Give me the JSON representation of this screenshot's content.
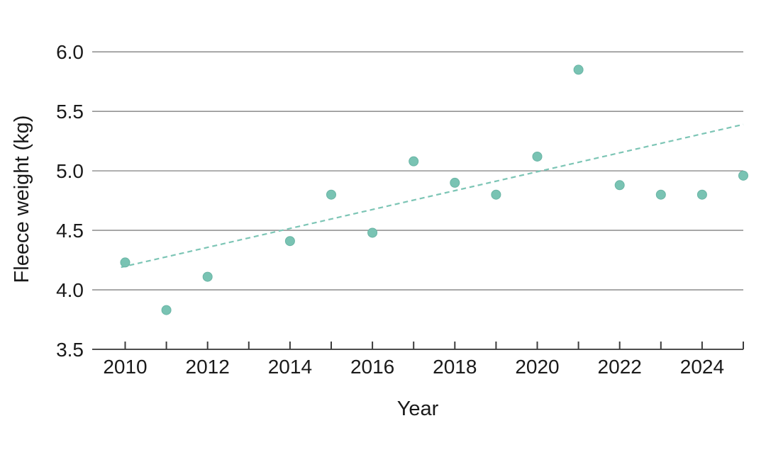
{
  "chart_data": {
    "type": "scatter",
    "title": "",
    "xlabel": "Year",
    "ylabel": "Fleece weight (kg)",
    "x": [
      2010,
      2011,
      2012,
      2014,
      2015,
      2016,
      2017,
      2018,
      2019,
      2020,
      2021,
      2022,
      2023,
      2024,
      2025
    ],
    "y": [
      4.23,
      3.83,
      4.11,
      4.41,
      4.8,
      4.48,
      5.08,
      4.9,
      4.8,
      5.12,
      5.85,
      4.88,
      4.8,
      4.8,
      4.96
    ],
    "trend_line": {
      "style": "dashed",
      "x1": 2009.9,
      "y1": 4.19,
      "x2": 2025.0,
      "y2": 5.39
    },
    "xlim": [
      2009.2,
      2025.0
    ],
    "ylim": [
      3.5,
      6.0
    ],
    "xticks": [
      2010,
      2011,
      2012,
      2013,
      2014,
      2015,
      2016,
      2017,
      2018,
      2019,
      2020,
      2021,
      2022,
      2023,
      2024,
      2025
    ],
    "xtick_label_years": [
      "2010",
      "2012",
      "2014",
      "2016",
      "2018",
      "2020",
      "2022",
      "2024"
    ],
    "yticks": [
      "3.5",
      "4.0",
      "4.5",
      "5.0",
      "5.5",
      "6.0"
    ],
    "grid": "horizontal",
    "legend": "none",
    "colors": {
      "point": "#79c3b3",
      "point_edge": "#69b5a5",
      "trend": "#7cc5b5",
      "grid": "#949494",
      "axis": "#4d4d4d",
      "tick": "#3c3c3c",
      "text": "#1a1a1a",
      "background": "#ffffff"
    }
  }
}
